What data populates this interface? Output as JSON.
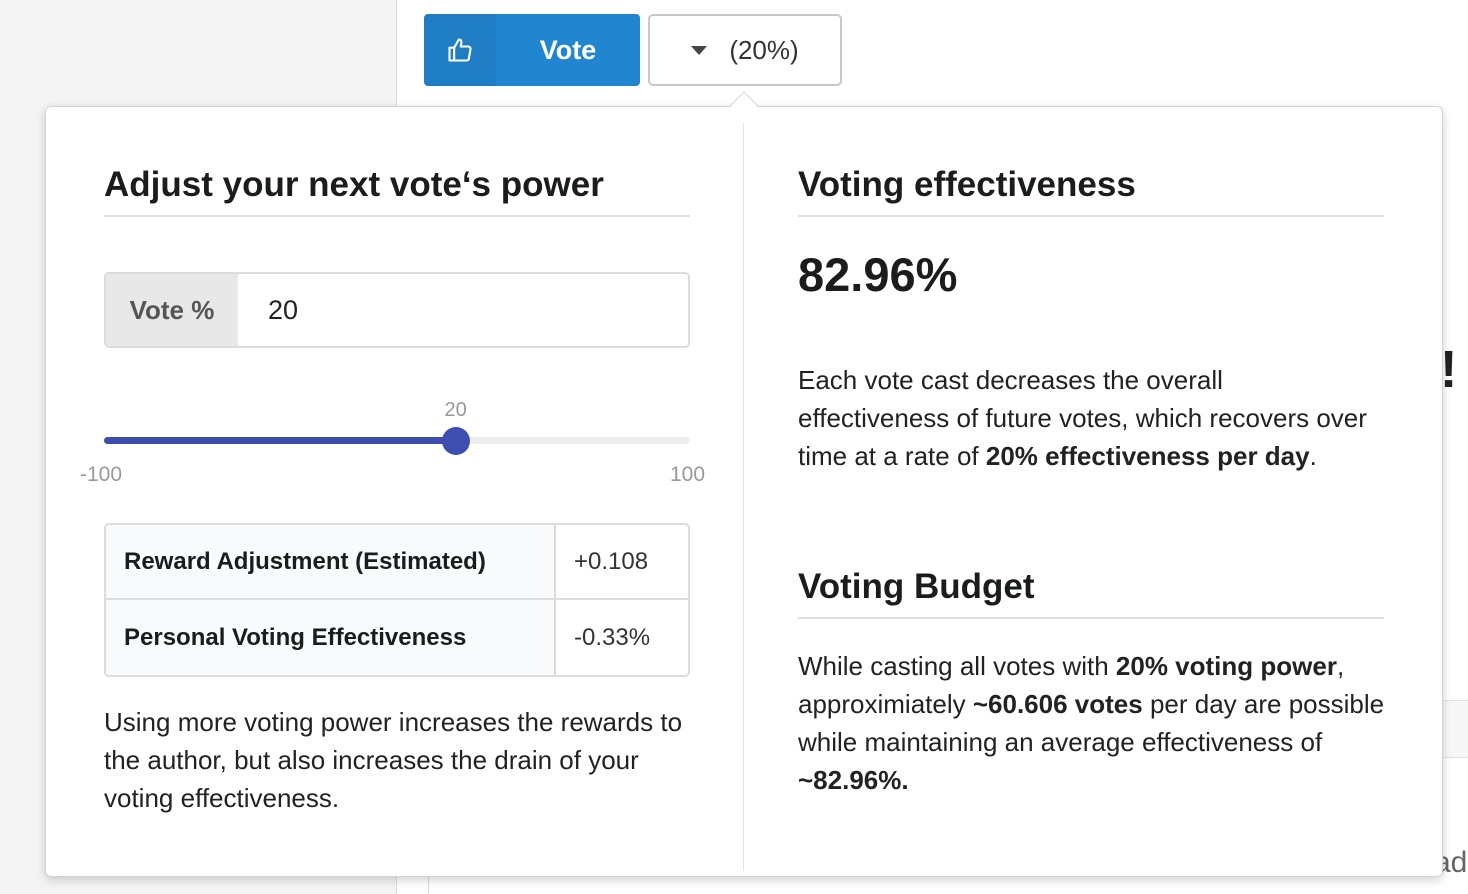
{
  "toolbar": {
    "vote_label": "Vote",
    "percent_label": "(20%)"
  },
  "left": {
    "title": "Adjust your next vote‘s power",
    "input_label": "Vote %",
    "input_value": "20",
    "slider": {
      "value": 20,
      "value_label": "20",
      "min": -100,
      "max": 100,
      "min_label": "-100",
      "max_label": "100"
    },
    "table": [
      {
        "key": "Reward Adjustment (Estimated)",
        "value": "+0.108"
      },
      {
        "key": "Personal Voting Effectiveness",
        "value": "-0.33%"
      }
    ],
    "description": "Using more voting power increases the rewards to the author, but also increases the drain of your voting effectiveness."
  },
  "right": {
    "title": "Voting effectiveness",
    "effectiveness_value": "82.96%",
    "effectiveness_text_1": "Each vote cast decreases the overall effectiveness of future votes, which recovers over time at a rate of ",
    "effectiveness_text_bold": "20% effectiveness per day",
    "effectiveness_text_2": ".",
    "budget_title": "Voting Budget",
    "budget_text_1": "While casting all votes with ",
    "budget_bold_1": "20% voting power",
    "budget_text_2": ", approximiately ",
    "budget_bold_2": "~60.606 votes",
    "budget_text_3": " per day are possible while maintaining an average effectiveness of ",
    "budget_bold_3": "~82.96%."
  },
  "background": {
    "exclaim": "!",
    "trailing_text": "ad"
  },
  "colors": {
    "primary": "#2185d0",
    "slider": "#3c4fb0"
  }
}
